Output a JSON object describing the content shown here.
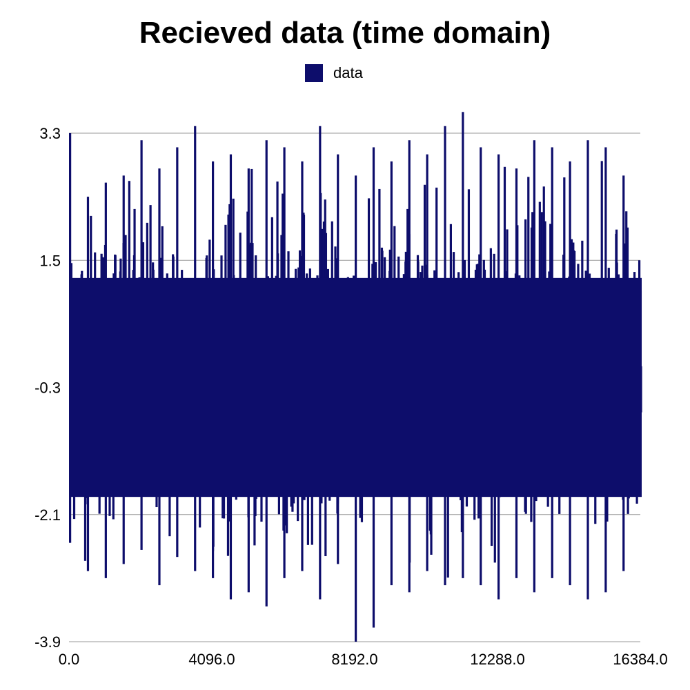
{
  "chart_data": {
    "type": "bar",
    "title": "Recieved data (time domain)",
    "xlabel": "",
    "ylabel": "",
    "legend": {
      "position": "top",
      "entries": [
        {
          "name": "data",
          "color": "#0d0d6b"
        }
      ]
    },
    "grid": true,
    "xlim": [
      0,
      16384
    ],
    "ylim": [
      -3.9,
      3.3
    ],
    "x_tick_labels": [
      "0.0",
      "4096.0",
      "8192.0",
      "12288.0",
      "16384.0"
    ],
    "y_tick_labels": [
      "3.3",
      "1.5",
      "-0.3",
      "-2.1",
      "-3.9"
    ],
    "series": [
      {
        "name": "data",
        "color": "#0d0d6b",
        "n_points": 16384,
        "description_stats": {
          "mean": 0,
          "std": 1,
          "max": 3.6,
          "min": -3.9
        },
        "approx_envelope": {
          "x": [
            0,
            512,
            1024,
            1536,
            2048,
            2560,
            3072,
            3584,
            4096,
            4608,
            5120,
            5632,
            6144,
            6656,
            7168,
            7680,
            8192,
            8704,
            9216,
            9728,
            10240,
            10752,
            11264,
            11776,
            12288,
            12800,
            13312,
            13824,
            14336,
            14848,
            15360,
            15872,
            16384
          ],
          "upper": [
            3.3,
            2.4,
            2.6,
            2.7,
            3.2,
            2.8,
            3.1,
            3.4,
            2.9,
            3.0,
            2.8,
            3.2,
            3.1,
            2.9,
            3.4,
            3.0,
            2.7,
            3.1,
            2.9,
            3.2,
            3.0,
            3.4,
            3.6,
            3.1,
            3.0,
            2.8,
            3.2,
            3.1,
            2.9,
            3.2,
            3.1,
            2.7,
            1.5
          ],
          "lower": [
            -2.5,
            -2.9,
            -3.0,
            -2.8,
            -2.6,
            -3.1,
            -2.7,
            -2.9,
            -3.0,
            -3.3,
            -3.2,
            -3.4,
            -3.0,
            -2.9,
            -3.3,
            -2.8,
            -3.9,
            -3.7,
            -3.1,
            -3.2,
            -2.9,
            -3.1,
            -3.0,
            -3.1,
            -3.3,
            -3.0,
            -3.2,
            -3.0,
            -3.1,
            -3.3,
            -3.2,
            -2.9,
            -1.7
          ]
        }
      }
    ]
  }
}
